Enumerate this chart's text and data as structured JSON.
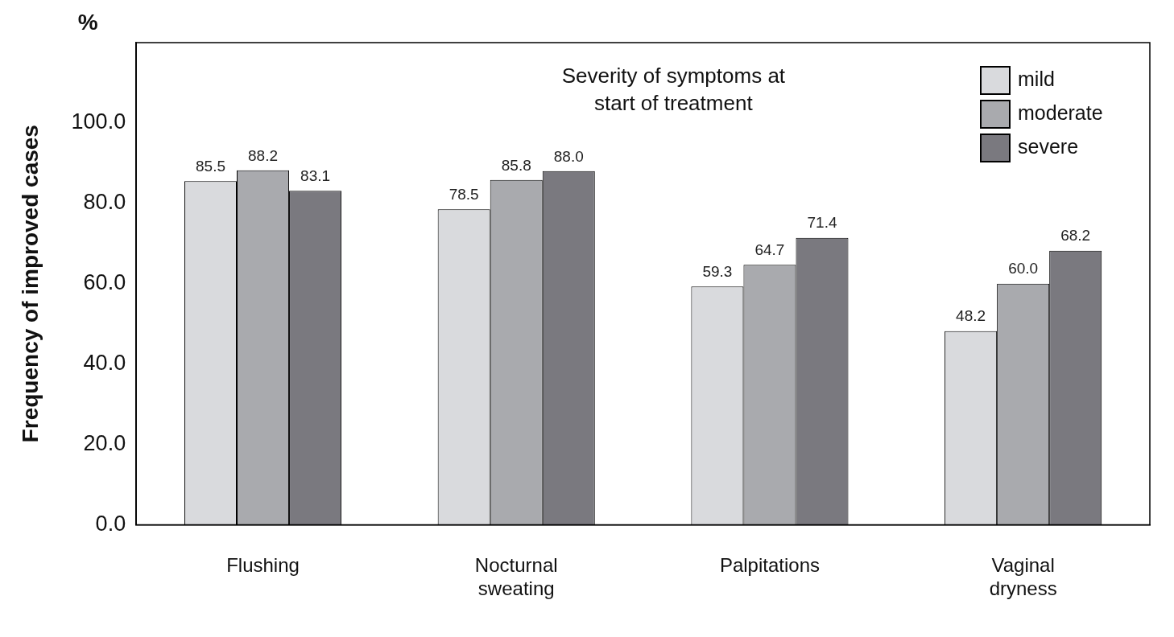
{
  "chart_data": {
    "type": "bar",
    "legend_title": "Severity of symptoms at start of treatment",
    "ylabel": "Frequency of improved cases",
    "annotations": [
      "%"
    ],
    "categories": [
      "Flushing",
      "Nocturnal sweating",
      "Palpitations",
      "Vaginal dryness"
    ],
    "series": [
      {
        "name": "mild",
        "color": "#d9dadd",
        "values": [
          85.5,
          78.5,
          59.3,
          48.2
        ],
        "value_labels": [
          "85.5",
          "78.5",
          "59.3",
          "48.2"
        ]
      },
      {
        "name": "moderate",
        "color": "#a9aaae",
        "values": [
          88.2,
          85.8,
          64.7,
          60.0
        ],
        "value_labels": [
          "88.2",
          "85.8",
          "64.7",
          "60.0"
        ]
      },
      {
        "name": "severe",
        "color": "#7a797f",
        "values": [
          83.1,
          88.0,
          71.4,
          68.2
        ],
        "value_labels": [
          "83.1",
          "88.0",
          "71.4",
          "68.2"
        ]
      }
    ],
    "ylim": [
      0,
      120
    ],
    "yticks": [
      {
        "value": 0,
        "label": "0.0"
      },
      {
        "value": 20,
        "label": "20.0"
      },
      {
        "value": 40,
        "label": "40.0"
      },
      {
        "value": 60,
        "label": "60.0"
      },
      {
        "value": 80,
        "label": "80.0"
      },
      {
        "value": 100,
        "label": "100.0"
      }
    ],
    "grid": false,
    "legend": "top right"
  }
}
